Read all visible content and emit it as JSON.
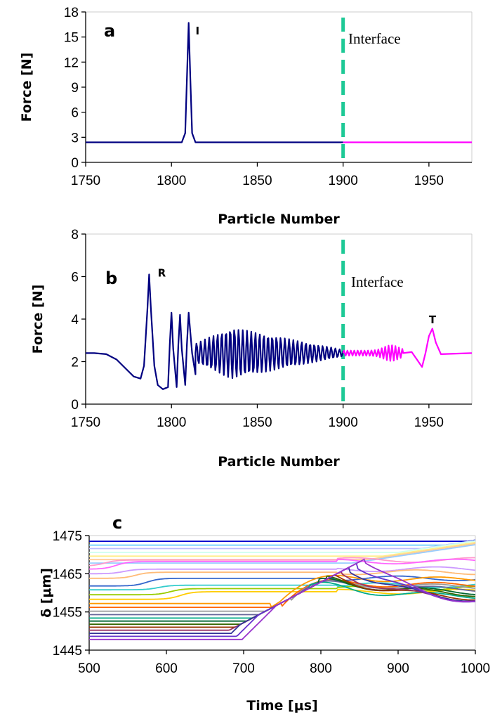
{
  "chart_data": [
    {
      "type": "line",
      "panel_label": "a",
      "xlabel": "Particle Number",
      "ylabel": "Force [N]",
      "xlim": [
        1750,
        1975
      ],
      "ylim": [
        0,
        18
      ],
      "x_ticks": [
        "1750",
        "1800",
        "1850",
        "1900",
        "1950"
      ],
      "y_ticks": [
        "0",
        "3",
        "6",
        "9",
        "12",
        "15",
        "18"
      ],
      "interface_x": 1900,
      "interface_label": "Interface",
      "annotations": [
        {
          "text": "I",
          "x": 1814,
          "y": 15.3
        }
      ],
      "series": [
        {
          "color": "#000080",
          "x": [
            1750,
            1806,
            1808,
            1809,
            1810,
            1811,
            1812,
            1814,
            1900
          ],
          "y": [
            2.4,
            2.4,
            3.5,
            10.0,
            16.7,
            10.0,
            3.5,
            2.4,
            2.4
          ]
        },
        {
          "color": "#ff00ff",
          "x": [
            1900,
            1975
          ],
          "y": [
            2.4,
            2.4
          ]
        }
      ]
    },
    {
      "type": "line",
      "panel_label": "b",
      "xlabel": "Particle Number",
      "ylabel": "Force [N]",
      "xlim": [
        1750,
        1975
      ],
      "ylim": [
        0,
        8
      ],
      "x_ticks": [
        "1750",
        "1800",
        "1850",
        "1900",
        "1950"
      ],
      "y_ticks": [
        "0",
        "2",
        "4",
        "6",
        "8"
      ],
      "interface_x": 1900,
      "interface_label": "Interface",
      "annotations": [
        {
          "text": "R",
          "x": 1792,
          "y": 6.0
        },
        {
          "text": "T",
          "x": 1950,
          "y": 3.8
        }
      ],
      "series": [
        {
          "color": "#000080",
          "x": [
            1750,
            1755,
            1762,
            1768,
            1773,
            1778,
            1782,
            1784,
            1786,
            1787,
            1788,
            1790,
            1792,
            1795,
            1798,
            1799,
            1800,
            1801,
            1803,
            1804,
            1805,
            1806,
            1808,
            1809,
            1810,
            1812,
            1814,
            1900
          ],
          "y": [
            2.4,
            2.4,
            2.35,
            2.1,
            1.7,
            1.3,
            1.2,
            1.8,
            4.5,
            6.1,
            4.5,
            1.8,
            0.9,
            0.7,
            0.8,
            2.8,
            4.3,
            2.6,
            0.8,
            2.8,
            4.2,
            2.6,
            0.9,
            2.8,
            4.3,
            2.4,
            1.4,
            2.4
          ]
        },
        {
          "color": "#ff00ff",
          "x": [
            1900,
            1935,
            1940,
            1943,
            1946,
            1948,
            1950,
            1952,
            1954,
            1957,
            1975
          ],
          "y": [
            2.4,
            2.4,
            2.45,
            2.1,
            1.75,
            2.4,
            3.2,
            3.55,
            2.9,
            2.35,
            2.4
          ]
        }
      ]
    },
    {
      "type": "line",
      "panel_label": "c",
      "xlabel": "Time [μs]",
      "ylabel": "δ [μm]",
      "xlim": [
        500,
        1000
      ],
      "ylim": [
        1445,
        1475
      ],
      "x_ticks": [
        "500",
        "600",
        "700",
        "800",
        "900",
        "1000"
      ],
      "y_ticks": [
        "1445",
        "1455",
        "1465",
        "1475"
      ],
      "series_note": "27 stacked displacement traces; each starts at a level and rises along a common front after its step time, then oscillates",
      "series": [
        {
          "color": "#0000cc",
          "start": 1473.5,
          "step_time": 990,
          "settle": 1473.8
        },
        {
          "color": "#66ccff",
          "start": 1472.5,
          "step_time": 960,
          "settle": 1472.8
        },
        {
          "color": "#bbbbff",
          "start": 1471.6,
          "step_time": 930,
          "settle": 1471.0
        },
        {
          "color": "#ccffee",
          "start": 1470.6,
          "step_time": 900,
          "settle": 1470.5
        },
        {
          "color": "#ffee88",
          "start": 1469.6,
          "step_time": 880,
          "settle": 1469.2
        },
        {
          "color": "#ffcc99",
          "start": 1468.7,
          "step_time": 860,
          "settle": 1468.4
        },
        {
          "color": "#99ccff",
          "start": 1467.8,
          "step_time": 840,
          "settle": 1467.5
        },
        {
          "color": "#ff99cc",
          "start": 1467.0,
          "step_time": 500,
          "settle": 1465.3
        },
        {
          "color": "#ff66ff",
          "start": 1466.2,
          "step_time": 515,
          "settle": 1466.0
        },
        {
          "color": "#cc99ff",
          "start": 1465.0,
          "step_time": 525,
          "settle": 1464.8
        },
        {
          "color": "#ffbb77",
          "start": 1463.8,
          "step_time": 540,
          "settle": 1463.9
        },
        {
          "color": "#3366cc",
          "start": 1461.8,
          "step_time": 555,
          "settle": 1462.5
        },
        {
          "color": "#33cccc",
          "start": 1460.8,
          "step_time": 570,
          "settle": 1461.3
        },
        {
          "color": "#99cc00",
          "start": 1459.5,
          "step_time": 585,
          "settle": 1460.5
        },
        {
          "color": "#ffcc00",
          "start": 1458.3,
          "step_time": 598,
          "settle": 1463.0
        },
        {
          "color": "#ff9900",
          "start": 1457.2,
          "step_time": 610,
          "settle": 1463.5
        },
        {
          "color": "#ff6600",
          "start": 1456.2,
          "step_time": 620,
          "settle": 1462.0
        },
        {
          "color": "#999999",
          "start": 1455.2,
          "step_time": 630,
          "settle": 1461.5
        },
        {
          "color": "#666699",
          "start": 1454.3,
          "step_time": 640,
          "settle": 1460.8
        },
        {
          "color": "#00aa88",
          "start": 1453.4,
          "step_time": 648,
          "settle": 1459.0
        },
        {
          "color": "#006633",
          "start": 1452.6,
          "step_time": 656,
          "settle": 1460.0
        },
        {
          "color": "#336600",
          "start": 1451.8,
          "step_time": 663,
          "settle": 1459.5
        },
        {
          "color": "#993300",
          "start": 1451.0,
          "step_time": 670,
          "settle": 1458.5
        },
        {
          "color": "#993366",
          "start": 1450.2,
          "step_time": 677,
          "settle": 1458.0
        },
        {
          "color": "#333399",
          "start": 1449.4,
          "step_time": 684,
          "settle": 1458.0
        },
        {
          "color": "#6633cc",
          "start": 1448.6,
          "step_time": 691,
          "settle": 1457.6
        },
        {
          "color": "#9933cc",
          "start": 1447.8,
          "step_time": 698,
          "settle": 1457.4
        }
      ]
    }
  ]
}
